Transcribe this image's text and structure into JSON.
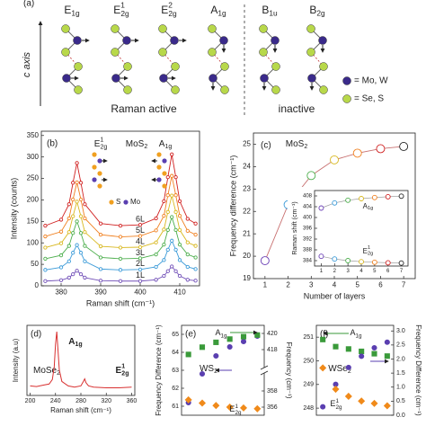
{
  "panel_a": {
    "label": "(a)",
    "axis_label": "c axis",
    "modes": [
      {
        "base": "E",
        "sub": "1g"
      },
      {
        "base": "E",
        "sup": "1",
        "sub": "2g"
      },
      {
        "base": "E",
        "sup": "2",
        "sub": "2g"
      },
      {
        "base": "A",
        "sub": "1g"
      },
      {
        "base": "B",
        "sub": "1u"
      },
      {
        "base": "B",
        "sub": "2g"
      }
    ],
    "groups": [
      "Raman active",
      "inactive"
    ],
    "legend": [
      "= Mo, W",
      "= Se, S"
    ]
  },
  "chart_data": [
    {
      "type": "line",
      "label": "(b)",
      "title": {
        "base": "MoS",
        "sub": "2"
      },
      "annotations": [
        {
          "base": "E",
          "sup": "1",
          "sub": "2g"
        },
        {
          "base": "A",
          "sub": "1g"
        }
      ],
      "inset_legend": [
        "S",
        "Mo"
      ],
      "xlabel": "Raman shift (cm⁻¹)",
      "ylabel": "Intensity (counts)",
      "x": [
        376,
        380,
        382,
        383,
        384,
        385,
        386,
        390,
        395,
        400,
        404,
        406,
        407,
        408,
        409,
        410,
        412,
        414
      ],
      "series": [
        {
          "name": "1L",
          "color": "#7250b8",
          "marker": "circle",
          "values": [
            11,
            13,
            19,
            27,
            35,
            27,
            19,
            12,
            11,
            11,
            14,
            23,
            34,
            45,
            34,
            23,
            14,
            12
          ]
        },
        {
          "name": "2L",
          "color": "#3a9ad8",
          "marker": "circle",
          "values": [
            37,
            43,
            57,
            77,
            95,
            77,
            57,
            39,
            37,
            38,
            44,
            60,
            84,
            105,
            84,
            60,
            44,
            39
          ]
        },
        {
          "name": "3L",
          "color": "#4cae4c",
          "marker": "circle",
          "values": [
            63,
            71,
            93,
            123,
            150,
            123,
            93,
            66,
            63,
            64,
            73,
            96,
            130,
            160,
            130,
            96,
            73,
            66
          ]
        },
        {
          "name": "4L",
          "color": "#d8b820",
          "marker": "circle",
          "values": [
            89,
            99,
            125,
            162,
            196,
            162,
            125,
            92,
            89,
            90,
            101,
            131,
            172,
            210,
            172,
            130,
            101,
            93
          ]
        },
        {
          "name": "5L",
          "color": "#f08020",
          "marker": "circle",
          "values": [
            115,
            126,
            157,
            201,
            241,
            201,
            157,
            119,
            114,
            116,
            129,
            163,
            211,
            256,
            211,
            163,
            128,
            119
          ]
        },
        {
          "name": "6L",
          "color": "#d02020",
          "marker": "circle",
          "values": [
            140,
            154,
            190,
            240,
            286,
            240,
            190,
            145,
            140,
            142,
            157,
            197,
            253,
            306,
            253,
            197,
            156,
            145
          ]
        }
      ],
      "xlim": [
        375,
        415
      ],
      "xticks": [
        380,
        390,
        400,
        410
      ],
      "ylim": [
        0,
        360
      ],
      "yticks": [
        0,
        50,
        100,
        150,
        200,
        250,
        300,
        350
      ]
    },
    {
      "type": "line",
      "label": "(c)",
      "title": {
        "base": "MoS",
        "sub": "2"
      },
      "xlabel": "Number of layers",
      "ylabel": "Frequency difference (cm⁻¹)",
      "x": [
        1,
        2,
        3,
        4,
        5,
        6,
        7
      ],
      "series": [
        {
          "color": "#c87070",
          "marker": "circle",
          "values": [
            19.8,
            22.3,
            23.6,
            24.3,
            24.6,
            24.8,
            24.9
          ]
        }
      ],
      "point_colors": [
        "#6a3fb5",
        "#3a9ad8",
        "#4cae4c",
        "#d8b820",
        "#f08020",
        "#d02020",
        "#222222"
      ],
      "xlim": [
        0.5,
        7.5
      ],
      "xticks": [
        1,
        2,
        3,
        4,
        5,
        6,
        7
      ],
      "ylim": [
        19,
        25.5
      ],
      "yticks": [
        19,
        20,
        21,
        22,
        23,
        24,
        25
      ]
    },
    {
      "type": "line",
      "ylabel": "Raman shift (cm⁻¹)",
      "x": [
        1,
        2,
        3,
        4,
        5,
        6,
        7
      ],
      "series": [
        {
          "name": {
            "base": "A",
            "sub": "1g"
          },
          "color": "#999999",
          "marker": "circle",
          "values": [
            403.5,
            405.4,
            406.4,
            407,
            407.4,
            407.7,
            407.9
          ]
        },
        {
          "name": {
            "base": "E",
            "sup": "1",
            "sub": "2g"
          },
          "color": "#999999",
          "marker": "circle",
          "values": [
            385.6,
            384.6,
            384,
            383.6,
            383.4,
            383.2,
            383.1
          ]
        }
      ],
      "point_colors": [
        "#6a3fb5",
        "#3a9ad8",
        "#4cae4c",
        "#d8b820",
        "#f08020",
        "#d02020",
        "#222222"
      ],
      "xlim": [
        0.5,
        7.5
      ],
      "xticks": [
        1,
        2,
        3,
        4,
        5,
        6,
        7
      ],
      "ylim": [
        382,
        410
      ],
      "yticks": [
        384,
        388,
        392,
        396,
        400,
        404,
        408
      ]
    },
    {
      "type": "line",
      "label": "(d)",
      "title": {
        "base": "MoSe",
        "sub": "2"
      },
      "annotations": [
        {
          "base": "A",
          "sub": "1g"
        },
        {
          "base": "E",
          "sup": "1",
          "sub": "2g"
        }
      ],
      "xlabel": "Raman shift (cm⁻¹)",
      "ylabel": "Intensity (a.u)",
      "x": [
        200,
        210,
        220,
        230,
        235,
        238,
        240,
        242,
        244,
        246,
        250,
        260,
        270,
        280,
        284,
        286,
        288,
        292,
        300,
        320,
        340,
        360
      ],
      "series": [
        {
          "color": "#d83030",
          "values": [
            0.15,
            0.14,
            0.16,
            0.18,
            0.25,
            0.45,
            0.8,
            1.0,
            0.7,
            0.4,
            0.22,
            0.15,
            0.13,
            0.15,
            0.22,
            0.26,
            0.2,
            0.15,
            0.13,
            0.12,
            0.12,
            0.13
          ]
        }
      ],
      "xlim": [
        195,
        365
      ],
      "xticks": [
        200,
        240,
        280,
        320,
        360
      ],
      "ylim": [
        0,
        1.1
      ]
    },
    {
      "type": "scatter",
      "label": "(e)",
      "title": {
        "base": "WS",
        "sub": "2"
      },
      "ylabel": "Frequency Difference (cm⁻¹)",
      "y2label": "Frequency (cm⁻¹)",
      "x": [
        1,
        2,
        3,
        4,
        5,
        6
      ],
      "series": [
        {
          "color": "#5a3fb0",
          "marker": "circle",
          "values": [
            61.2,
            62.8,
            63.8,
            64.3,
            64.6,
            64.9
          ]
        },
        {
          "name": {
            "base": "A",
            "sub": "1g"
          },
          "color": "#3a9a3a",
          "marker": "square",
          "axis": "y2",
          "values": [
            417.4,
            418.3,
            418.9,
            419.3,
            419.6,
            419.8
          ]
        },
        {
          "name": {
            "base": "E",
            "sup": "1",
            "sub": "2g"
          },
          "color": "#f08a1a",
          "marker": "diamond",
          "axis": "y2",
          "values": [
            356.9,
            356.5,
            356.2,
            356.0,
            355.9,
            355.8
          ]
        }
      ],
      "xlim": [
        0.5,
        6.5
      ],
      "ylim": [
        60.5,
        65.5
      ],
      "yticks": [
        61,
        62,
        63,
        64,
        65
      ],
      "y2lim": [
        355,
        421
      ],
      "y2_break": [
        360,
        416
      ],
      "y2ticks": [
        356,
        358,
        418,
        420
      ]
    },
    {
      "type": "scatter",
      "label": "(f)",
      "title": {
        "base": "WSe",
        "sub": "2"
      },
      "y2label": "Frequency Difference (cm⁻¹)",
      "x": [
        1,
        2,
        3,
        4,
        5,
        6
      ],
      "series": [
        {
          "name": {
            "base": "A",
            "sub": "1g"
          },
          "color": "#3a9a3a",
          "marker": "square",
          "values": [
            250.9,
            250.6,
            250.5,
            250.4,
            250.3,
            250.2
          ]
        },
        {
          "color": "#5a3fb0",
          "marker": "circle",
          "axis": "y2",
          "values": [
            0.3,
            1.1,
            1.7,
            2.1,
            2.4,
            2.6
          ]
        },
        {
          "name": {
            "base": "E",
            "sup": "1",
            "sub": "2g"
          },
          "color": "#f08a1a",
          "marker": "diamond",
          "values": [
            249.7,
            248.8,
            248.5,
            248.3,
            248.2,
            248.1
          ]
        }
      ],
      "xlim": [
        0.5,
        6.5
      ],
      "ylim": [
        247.7,
        251.5
      ],
      "yticks": [
        248,
        249,
        250,
        251
      ],
      "y2lim": [
        0,
        3.2
      ],
      "y2ticks": [
        {
          "value": 0,
          "label": "0.0"
        },
        {
          "value": 0.5,
          "label": "0.5"
        },
        {
          "value": 1,
          "label": "1.0"
        },
        {
          "value": 1.5,
          "label": "1.5"
        },
        {
          "value": 2,
          "label": "2.0"
        },
        {
          "value": 2.5,
          "label": "2.5"
        },
        {
          "value": 3,
          "label": "3.0"
        }
      ]
    }
  ]
}
